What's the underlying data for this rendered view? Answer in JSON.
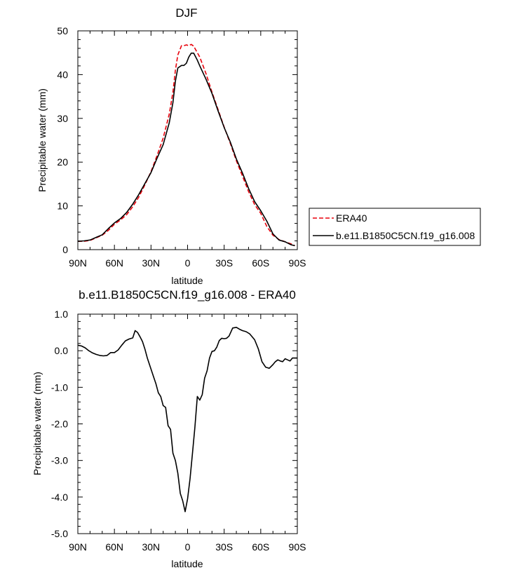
{
  "chart_data": [
    {
      "type": "line",
      "title": "DJF",
      "xlabel": "latitude",
      "ylabel": "Precipitable water (mm)",
      "x_axis_direction": "90N to 90S (north on the left)",
      "xlim": [
        90,
        -90
      ],
      "ylim": [
        0,
        50
      ],
      "xticks": [
        90,
        60,
        30,
        0,
        -30,
        -60,
        -90
      ],
      "xtick_labels": [
        "90N",
        "60N",
        "30N",
        "0",
        "30S",
        "60S",
        "90S"
      ],
      "yticks": [
        0,
        10,
        20,
        30,
        40,
        50
      ],
      "ytick_labels": [
        "0",
        "10",
        "20",
        "30",
        "40",
        "50"
      ],
      "legend_position": "right, outside plot area",
      "series": [
        {
          "name": "ERA40",
          "color": "#e8000b",
          "dash": "dashed",
          "x": [
            90,
            85,
            80,
            75,
            70,
            65,
            60,
            55,
            50,
            45,
            40,
            35,
            30,
            25,
            20,
            15,
            12,
            10,
            8,
            5,
            3,
            1,
            -1,
            -3,
            -5,
            -8,
            -10,
            -15,
            -20,
            -25,
            -30,
            -35,
            -40,
            -45,
            -50,
            -55,
            -60,
            -65,
            -70,
            -75,
            -80,
            -85,
            -88
          ],
          "y": [
            1.9,
            1.9,
            2.1,
            2.7,
            3.3,
            4.4,
            5.8,
            6.8,
            8.0,
            9.8,
            12.0,
            14.8,
            17.8,
            21.5,
            25.5,
            31.0,
            36.0,
            41.0,
            44.5,
            46.6,
            46.6,
            46.8,
            46.6,
            46.9,
            46.5,
            45.0,
            44.0,
            40.3,
            36.0,
            32.0,
            28.0,
            24.3,
            20.3,
            16.8,
            13.3,
            10.3,
            8.3,
            5.3,
            3.3,
            2.3,
            1.8,
            1.3,
            0.9
          ]
        },
        {
          "name": "b.e11.B1850C5CN.f19_g16.008",
          "color": "#000000",
          "dash": "solid",
          "x": [
            90,
            85,
            80,
            75,
            70,
            65,
            60,
            55,
            50,
            45,
            40,
            35,
            30,
            25,
            20,
            15,
            12,
            10,
            8,
            5,
            3,
            1,
            -1,
            -3,
            -5,
            -8,
            -10,
            -15,
            -20,
            -25,
            -30,
            -35,
            -40,
            -45,
            -50,
            -55,
            -60,
            -65,
            -70,
            -75,
            -80,
            -85,
            -88
          ],
          "y": [
            1.9,
            2.0,
            2.2,
            2.8,
            3.4,
            4.8,
            6.1,
            7.1,
            8.5,
            10.4,
            12.6,
            15.1,
            17.6,
            20.9,
            24.0,
            29.0,
            33.6,
            38.5,
            41.5,
            42.1,
            42.1,
            42.6,
            44.0,
            44.9,
            44.9,
            43.3,
            42.0,
            39.0,
            35.7,
            31.7,
            27.9,
            24.6,
            20.7,
            17.5,
            14.0,
            11.0,
            8.9,
            6.5,
            3.6,
            2.2,
            1.8,
            1.1,
            0.9
          ]
        }
      ]
    },
    {
      "type": "line",
      "title": "b.e11.B1850C5CN.f19_g16.008 - ERA40",
      "xlabel": "latitude",
      "ylabel": "Precipitable water (mm)",
      "xlim": [
        90,
        -90
      ],
      "ylim": [
        -5,
        1
      ],
      "xticks": [
        90,
        60,
        30,
        0,
        -30,
        -60,
        -90
      ],
      "xtick_labels": [
        "90N",
        "60N",
        "30N",
        "0",
        "30S",
        "60S",
        "90S"
      ],
      "yticks": [
        1,
        0,
        -1,
        -2,
        -3,
        -4,
        -5
      ],
      "ytick_labels": [
        "1.0",
        "0.0",
        "-1.0",
        "-2.0",
        "-3.0",
        "-4.0",
        "-5.0"
      ],
      "series": [
        {
          "color": "#000000",
          "dash": "solid",
          "x": [
            90,
            87,
            84,
            81,
            78,
            75,
            72,
            69,
            66,
            63,
            60,
            57,
            54,
            51,
            48,
            45,
            43,
            41,
            39,
            37,
            35,
            33,
            30,
            28,
            26,
            24,
            22,
            20,
            18,
            16,
            14,
            12,
            10,
            8,
            6,
            4,
            2,
            0,
            -2,
            -4,
            -6,
            -8,
            -10,
            -12,
            -14,
            -16,
            -18,
            -20,
            -22,
            -24,
            -26,
            -28,
            -30,
            -32,
            -34,
            -37,
            -40,
            -43,
            -45,
            -48,
            -51,
            -55,
            -58,
            -61,
            -64,
            -67,
            -70,
            -72,
            -74,
            -76,
            -78,
            -80,
            -82,
            -84,
            -86,
            -88,
            -90
          ],
          "y": [
            0.15,
            0.13,
            0.08,
            0.0,
            -0.06,
            -0.1,
            -0.13,
            -0.14,
            -0.13,
            -0.05,
            -0.05,
            0.02,
            0.15,
            0.27,
            0.32,
            0.35,
            0.55,
            0.5,
            0.38,
            0.25,
            0.05,
            -0.2,
            -0.5,
            -0.7,
            -0.9,
            -1.15,
            -1.25,
            -1.5,
            -1.55,
            -2.05,
            -2.15,
            -2.8,
            -3.0,
            -3.35,
            -3.9,
            -4.1,
            -4.4,
            -4.05,
            -3.5,
            -2.8,
            -2.1,
            -1.25,
            -1.35,
            -1.2,
            -0.75,
            -0.55,
            -0.2,
            -0.02,
            0.0,
            0.1,
            0.28,
            0.34,
            0.33,
            0.34,
            0.4,
            0.62,
            0.64,
            0.58,
            0.55,
            0.52,
            0.46,
            0.3,
            0.05,
            -0.3,
            -0.45,
            -0.48,
            -0.38,
            -0.3,
            -0.25,
            -0.28,
            -0.3,
            -0.22,
            -0.25,
            -0.28,
            -0.2,
            -0.2,
            -0.2
          ]
        }
      ]
    }
  ]
}
